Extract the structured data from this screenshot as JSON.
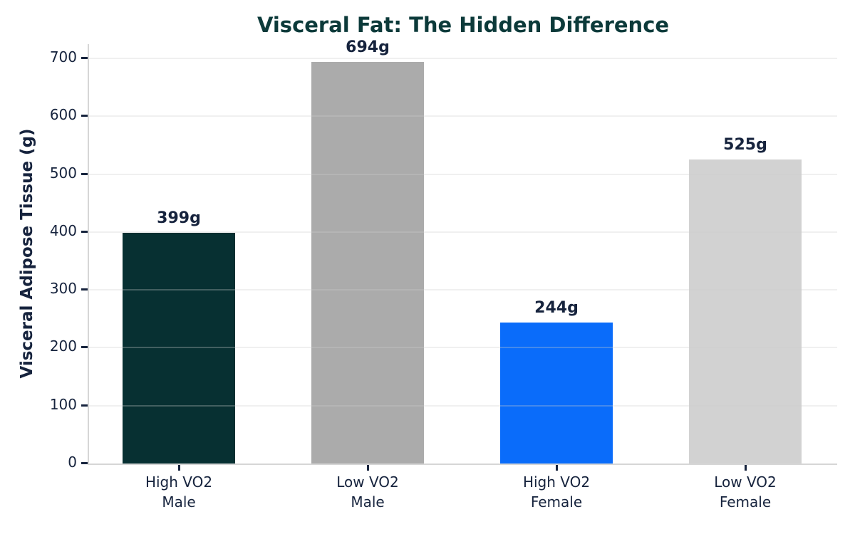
{
  "chart_data": {
    "type": "bar",
    "title": "Visceral Fat: The Hidden Difference",
    "xlabel": "",
    "ylabel": "Visceral Adipose Tissue (g)",
    "categories": [
      "High VO2\nMale",
      "Low VO2\nMale",
      "High VO2\nFemale",
      "Low VO2\nFemale"
    ],
    "values": [
      399,
      694,
      244,
      525
    ],
    "bar_labels": [
      "399g",
      "694g",
      "244g",
      "525g"
    ],
    "bar_colors": [
      "#073032",
      "#ababab",
      "#0a6cfa",
      "#d2d2d2"
    ],
    "yticks": [
      0,
      100,
      200,
      300,
      400,
      500,
      600,
      700
    ],
    "ylim": [
      0,
      727
    ],
    "grid": true,
    "legend": null
  },
  "colors": {
    "background": "#ffffff",
    "title": "#0c3a3a",
    "text": "#16233d",
    "gridline_rgba": "rgba(204,204,204,0.3)",
    "spine": "#d6d6d6",
    "tick_mark": "#16233d"
  }
}
